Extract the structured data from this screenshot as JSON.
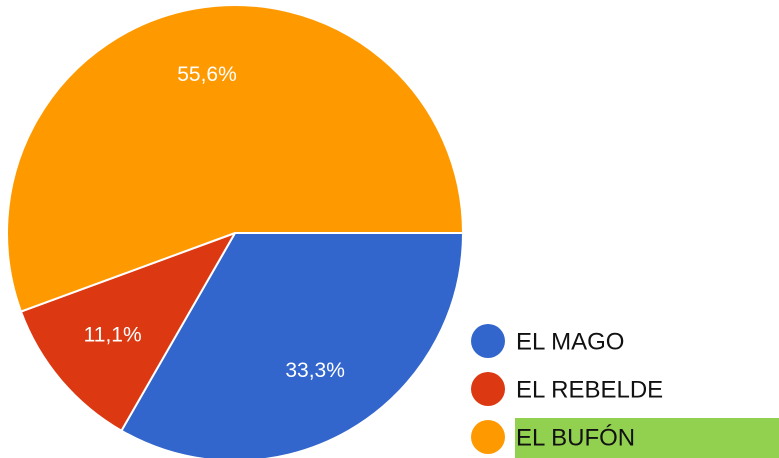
{
  "chart_data": {
    "type": "pie",
    "categories": [
      "EL MAGO",
      "EL REBELDE",
      "EL BUFÓN"
    ],
    "values": [
      33.3,
      11.1,
      55.6
    ],
    "value_labels": [
      "33,3%",
      "11,1%",
      "55,6%"
    ],
    "colors": [
      "#3366cc",
      "#dc3912",
      "#ff9900"
    ],
    "legend": "bottom-right"
  }
}
